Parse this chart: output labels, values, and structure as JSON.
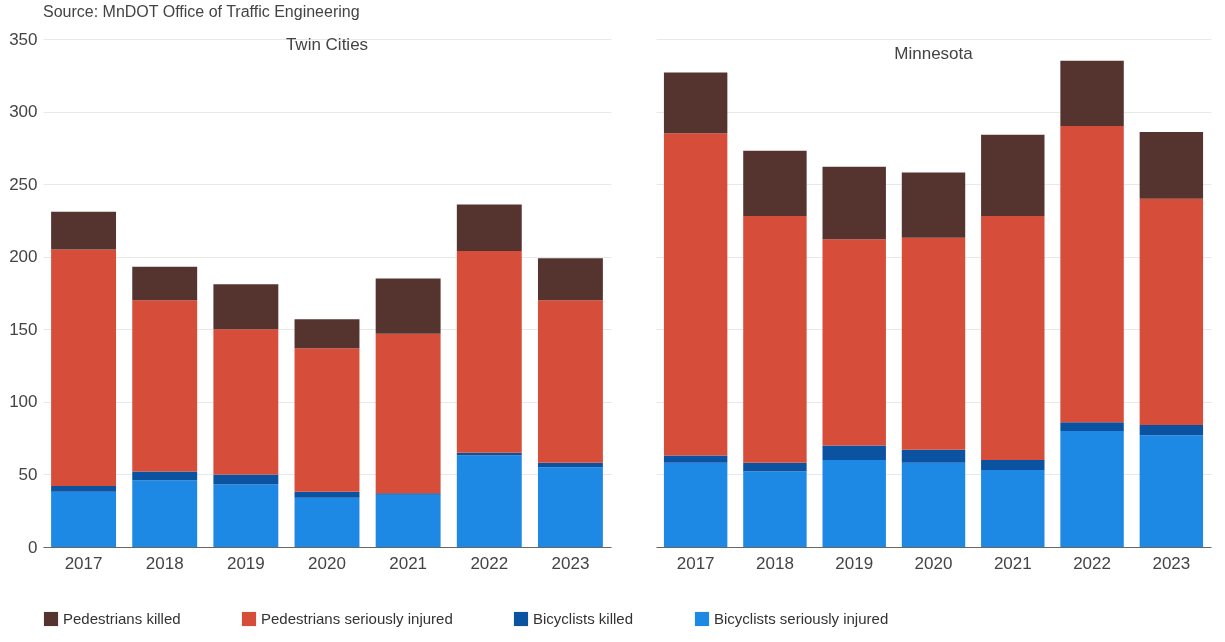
{
  "chart_data": [
    {
      "type": "bar",
      "title": "Twin Cities",
      "stacked": true,
      "categories": [
        "2017",
        "2018",
        "2019",
        "2020",
        "2021",
        "2022",
        "2023"
      ],
      "ylim": [
        0,
        350
      ],
      "yticks": [
        0,
        50,
        100,
        150,
        200,
        250,
        300,
        350
      ],
      "grid": "y",
      "legend": "bottom",
      "annotations": [
        "Source: MnDOT Office of Traffic Engineering"
      ],
      "series": [
        {
          "name": "Bicyclists seriously injured",
          "color": "#1e88e5",
          "values": [
            38,
            46,
            43,
            34,
            36,
            63,
            55
          ]
        },
        {
          "name": "Bicyclists killed",
          "color": "#0b52a0",
          "values": [
            4,
            6,
            7,
            4,
            1,
            2,
            3
          ]
        },
        {
          "name": "Pedestrians seriously injured",
          "color": "#d64d3a",
          "values": [
            163,
            118,
            100,
            99,
            110,
            139,
            112
          ]
        },
        {
          "name": "Pedestrians killed",
          "color": "#553430",
          "values": [
            26,
            23,
            31,
            20,
            38,
            32,
            29
          ]
        }
      ]
    },
    {
      "type": "bar",
      "title": "Minnesota",
      "stacked": true,
      "categories": [
        "2017",
        "2018",
        "2019",
        "2020",
        "2021",
        "2022",
        "2023"
      ],
      "ylim": [
        0,
        350
      ],
      "yticks": [
        0,
        50,
        100,
        150,
        200,
        250,
        300,
        350
      ],
      "grid": "y",
      "legend": "bottom",
      "tick_labels": "x",
      "series": [
        {
          "name": "Bicyclists seriously injured",
          "color": "#1e88e5",
          "values": [
            58,
            52,
            60,
            58,
            53,
            80,
            77
          ]
        },
        {
          "name": "Bicyclists killed",
          "color": "#0b52a0",
          "values": [
            5,
            6,
            10,
            9,
            7,
            6,
            7
          ]
        },
        {
          "name": "Pedestrians seriously injured",
          "color": "#d64d3a",
          "values": [
            222,
            170,
            142,
            146,
            168,
            204,
            156
          ]
        },
        {
          "name": "Pedestrians killed",
          "color": "#553430",
          "values": [
            42,
            45,
            50,
            45,
            56,
            45,
            46
          ]
        }
      ]
    }
  ]
}
